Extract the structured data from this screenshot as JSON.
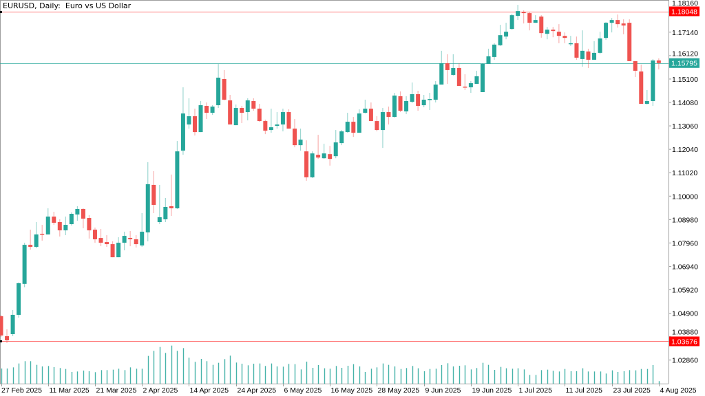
{
  "header": {
    "title": "EURUSD, Daily:  Euro vs US Dollar"
  },
  "colors": {
    "bull": "#26a69a",
    "bear": "#ef5350",
    "level_line": "#ff0000",
    "current_line": "#26a69a",
    "axis": "#9e9e9e",
    "volume": "#26a69a"
  },
  "chart_data": {
    "type": "candlestick",
    "symbol": "EURUSD",
    "timeframe": "Daily",
    "title": "EURUSD, Daily:  Euro vs US Dollar",
    "ylim": [
      1.0215,
      1.1854
    ],
    "grid": false,
    "y_ticks": [
      "1.18160",
      "1.17140",
      "1.16120",
      "1.15100",
      "1.14080",
      "1.13060",
      "1.12040",
      "1.11020",
      "1.10000",
      "1.08980",
      "1.07960",
      "1.06940",
      "1.05920",
      "1.04900",
      "1.03880",
      "1.02860"
    ],
    "x_ticks": [
      {
        "index": 0,
        "label": "27 Feb 2025"
      },
      {
        "index": 8,
        "label": "11 Mar 2025"
      },
      {
        "index": 16,
        "label": "21 Mar 2025"
      },
      {
        "index": 24,
        "label": "2 Apr 2025"
      },
      {
        "index": 32,
        "label": "14 Apr 2025"
      },
      {
        "index": 40,
        "label": "24 Apr 2025"
      },
      {
        "index": 48,
        "label": "6 May 2025"
      },
      {
        "index": 56,
        "label": "16 May 2025"
      },
      {
        "index": 64,
        "label": "28 May 2025"
      },
      {
        "index": 72,
        "label": "9 Jun 2025"
      },
      {
        "index": 80,
        "label": "19 Jun 2025"
      },
      {
        "index": 88,
        "label": "1 Jul 2025"
      },
      {
        "index": 96,
        "label": "11 Jul 2025"
      },
      {
        "index": 104,
        "label": "23 Jul 2025"
      },
      {
        "index": 112,
        "label": "4 Aug 2025"
      }
    ],
    "levels": [
      {
        "name": "high-level",
        "price": 1.18048,
        "label": "1.18048",
        "kind": "level"
      },
      {
        "name": "current-price",
        "price": 1.15795,
        "label": "1.15795",
        "kind": "current"
      },
      {
        "name": "low-level",
        "price": 1.03676,
        "label": "1.03676",
        "kind": "level"
      }
    ],
    "ohlc_columns": [
      "open",
      "high",
      "low",
      "close"
    ],
    "candles": [
      [
        1.0477,
        1.0483,
        1.0387,
        1.0393
      ],
      [
        1.039,
        1.042,
        1.036,
        1.0372
      ],
      [
        1.0399,
        1.0504,
        1.039,
        1.0483
      ],
      [
        1.0483,
        1.0624,
        1.0471,
        1.0621
      ],
      [
        1.0618,
        1.0797,
        1.0603,
        1.0788
      ],
      [
        1.0788,
        1.0854,
        1.0767,
        1.0779
      ],
      [
        1.0779,
        1.0887,
        1.0773,
        1.0833
      ],
      [
        1.0836,
        1.0875,
        1.0806,
        1.0833
      ],
      [
        1.0833,
        1.0947,
        1.0833,
        1.0911
      ],
      [
        1.0911,
        1.0932,
        1.0875,
        1.0884
      ],
      [
        1.0887,
        1.0899,
        1.0824,
        1.0851
      ],
      [
        1.0851,
        1.0911,
        1.083,
        1.0875
      ],
      [
        1.0878,
        1.0929,
        1.0872,
        1.0923
      ],
      [
        1.092,
        1.0956,
        1.0893,
        1.0944
      ],
      [
        1.0944,
        1.0947,
        1.086,
        1.0902
      ],
      [
        1.0905,
        1.0917,
        1.0815,
        1.0851
      ],
      [
        1.0854,
        1.0863,
        1.0797,
        1.0812
      ],
      [
        1.0818,
        1.0857,
        1.0782,
        1.0797
      ],
      [
        1.08,
        1.083,
        1.0779,
        1.0791
      ],
      [
        1.0791,
        1.0803,
        1.0734,
        1.0734
      ],
      [
        1.0734,
        1.0821,
        1.0734,
        1.0797
      ],
      [
        1.0797,
        1.0845,
        1.0764,
        1.0827
      ],
      [
        1.0818,
        1.0848,
        1.0782,
        1.0812
      ],
      [
        1.0812,
        1.083,
        1.0776,
        1.0791
      ],
      [
        1.0785,
        1.0926,
        1.0779,
        1.0845
      ],
      [
        1.0842,
        1.1148,
        1.0803,
        1.1052
      ],
      [
        1.1049,
        1.1109,
        1.0926,
        1.0962
      ],
      [
        1.0887,
        1.1049,
        1.0878,
        1.0908
      ],
      [
        1.0899,
        1.0992,
        1.0887,
        1.0953
      ],
      [
        1.0956,
        1.1094,
        1.0914,
        1.0947
      ],
      [
        1.0947,
        1.124,
        1.0944,
        1.1195
      ],
      [
        1.1198,
        1.1474,
        1.118,
        1.136
      ],
      [
        1.1312,
        1.1426,
        1.1294,
        1.1348
      ],
      [
        1.1348,
        1.1381,
        1.1264,
        1.1279
      ],
      [
        1.1279,
        1.1414,
        1.1279,
        1.1396
      ],
      [
        1.1393,
        1.1408,
        1.1336,
        1.1363
      ],
      [
        1.1363,
        1.1396,
        1.1354,
        1.139
      ],
      [
        1.1396,
        1.1576,
        1.1384,
        1.1516
      ],
      [
        1.151,
        1.1549,
        1.1417,
        1.142
      ],
      [
        1.1417,
        1.1441,
        1.1312,
        1.1312
      ],
      [
        1.1309,
        1.1399,
        1.1309,
        1.1384
      ],
      [
        1.1384,
        1.1393,
        1.1318,
        1.1363
      ],
      [
        1.1366,
        1.1426,
        1.133,
        1.1417
      ],
      [
        1.1414,
        1.1426,
        1.1372,
        1.1381
      ],
      [
        1.1381,
        1.1402,
        1.1324,
        1.1327
      ],
      [
        1.1327,
        1.1333,
        1.127,
        1.1285
      ],
      [
        1.1288,
        1.1381,
        1.1276,
        1.13
      ],
      [
        1.1306,
        1.1366,
        1.1294,
        1.1312
      ],
      [
        1.1312,
        1.1381,
        1.1282,
        1.1366
      ],
      [
        1.1366,
        1.1378,
        1.1294,
        1.1294
      ],
      [
        1.1294,
        1.1336,
        1.1213,
        1.1222
      ],
      [
        1.1222,
        1.1294,
        1.1198,
        1.1246
      ],
      [
        1.1195,
        1.1243,
        1.1067,
        1.1082
      ],
      [
        1.1082,
        1.1195,
        1.1079,
        1.1186
      ],
      [
        1.118,
        1.1267,
        1.1162,
        1.1168
      ],
      [
        1.1165,
        1.1228,
        1.1162,
        1.1186
      ],
      [
        1.1183,
        1.1219,
        1.1133,
        1.1162
      ],
      [
        1.1174,
        1.1288,
        1.1165,
        1.1234
      ],
      [
        1.1231,
        1.1288,
        1.1222,
        1.1282
      ],
      [
        1.1279,
        1.1363,
        1.1276,
        1.1324
      ],
      [
        1.1324,
        1.1345,
        1.1258,
        1.1276
      ],
      [
        1.1276,
        1.1378,
        1.1276,
        1.136
      ],
      [
        1.1363,
        1.142,
        1.136,
        1.1381
      ],
      [
        1.1381,
        1.1408,
        1.1327,
        1.1327
      ],
      [
        1.1327,
        1.1348,
        1.1282,
        1.1288
      ],
      [
        1.1288,
        1.1384,
        1.121,
        1.1366
      ],
      [
        1.1366,
        1.139,
        1.1312,
        1.1345
      ],
      [
        1.1345,
        1.145,
        1.1342,
        1.1438
      ],
      [
        1.1435,
        1.1456,
        1.1366,
        1.1372
      ],
      [
        1.1369,
        1.1435,
        1.1357,
        1.1414
      ],
      [
        1.1411,
        1.1495,
        1.1405,
        1.1444
      ],
      [
        1.1444,
        1.1459,
        1.1372,
        1.1393
      ],
      [
        1.1396,
        1.1441,
        1.1387,
        1.142
      ],
      [
        1.1422,
        1.145,
        1.1375,
        1.1423
      ],
      [
        1.142,
        1.1501,
        1.1408,
        1.1486
      ],
      [
        1.1486,
        1.1633,
        1.1486,
        1.1579
      ],
      [
        1.1579,
        1.1618,
        1.1489,
        1.1549
      ],
      [
        1.1528,
        1.1618,
        1.1525,
        1.1558
      ],
      [
        1.1558,
        1.1579,
        1.148,
        1.148
      ],
      [
        1.1477,
        1.1531,
        1.1462,
        1.1475
      ],
      [
        1.1474,
        1.1501,
        1.145,
        1.1492
      ],
      [
        1.1489,
        1.1546,
        1.1489,
        1.1522
      ],
      [
        1.1453,
        1.1579,
        1.1453,
        1.1576
      ],
      [
        1.1576,
        1.1642,
        1.1576,
        1.1609
      ],
      [
        1.1606,
        1.1666,
        1.1594,
        1.166
      ],
      [
        1.1657,
        1.1746,
        1.1654,
        1.1701
      ],
      [
        1.1695,
        1.1755,
        1.1683,
        1.1716
      ],
      [
        1.1728,
        1.1794,
        1.1725,
        1.1788
      ],
      [
        1.1785,
        1.1833,
        1.1767,
        1.1806
      ],
      [
        1.1803,
        1.1809,
        1.1752,
        1.1797
      ],
      [
        1.1797,
        1.1803,
        1.1722,
        1.1755
      ],
      [
        1.1755,
        1.1788,
        1.1755,
        1.1767
      ],
      [
        1.1782,
        1.1788,
        1.169,
        1.171
      ],
      [
        1.1707,
        1.1737,
        1.1683,
        1.1725
      ],
      [
        1.1725,
        1.1737,
        1.1692,
        1.1719
      ],
      [
        1.1716,
        1.1749,
        1.1666,
        1.1698
      ],
      [
        1.1698,
        1.1713,
        1.1666,
        1.1689
      ],
      [
        1.1663,
        1.1698,
        1.1654,
        1.1666
      ],
      [
        1.1666,
        1.1695,
        1.1594,
        1.1603
      ],
      [
        1.1597,
        1.1722,
        1.1564,
        1.1633
      ],
      [
        1.163,
        1.1642,
        1.1558,
        1.1594
      ],
      [
        1.1594,
        1.1675,
        1.1594,
        1.1624
      ],
      [
        1.1624,
        1.1716,
        1.1618,
        1.1687
      ],
      [
        1.1689,
        1.1758,
        1.1681,
        1.1755
      ],
      [
        1.1755,
        1.1776,
        1.1713,
        1.1767
      ],
      [
        1.1767,
        1.1791,
        1.1734,
        1.1749
      ],
      [
        1.1752,
        1.177,
        1.1705,
        1.1743
      ],
      [
        1.1755,
        1.177,
        1.1588,
        1.1588
      ],
      [
        1.1588,
        1.1588,
        1.1519,
        1.1546
      ],
      [
        1.1543,
        1.1573,
        1.1402,
        1.1402
      ],
      [
        1.1402,
        1.1462,
        1.1399,
        1.1414
      ],
      [
        1.1414,
        1.1597,
        1.1393,
        1.1591
      ],
      [
        1.1591,
        1.16,
        1.1552,
        1.15795
      ]
    ],
    "volume_relative": [
      66,
      66,
      71,
      88,
      98,
      98,
      82,
      75,
      77,
      72,
      68,
      64,
      51,
      53,
      57,
      54,
      50,
      59,
      59,
      61,
      65,
      59,
      71,
      65,
      65,
      121,
      143,
      160,
      134,
      166,
      143,
      155,
      113,
      95,
      108,
      98,
      82,
      91,
      107,
      122,
      92,
      87,
      80,
      87,
      88,
      77,
      88,
      75,
      74,
      86,
      85,
      62,
      96,
      69,
      81,
      67,
      65,
      77,
      69,
      78,
      85,
      75,
      51,
      65,
      71,
      88,
      82,
      75,
      64,
      68,
      77,
      67,
      54,
      64,
      65,
      81,
      89,
      75,
      78,
      80,
      62,
      68,
      91,
      82,
      60,
      73,
      67,
      65,
      67,
      62,
      38,
      38,
      59,
      61,
      56,
      53,
      64,
      54,
      54,
      67,
      53,
      53,
      53,
      44,
      58,
      51,
      54,
      59,
      58,
      64,
      64,
      81,
      11
    ]
  }
}
